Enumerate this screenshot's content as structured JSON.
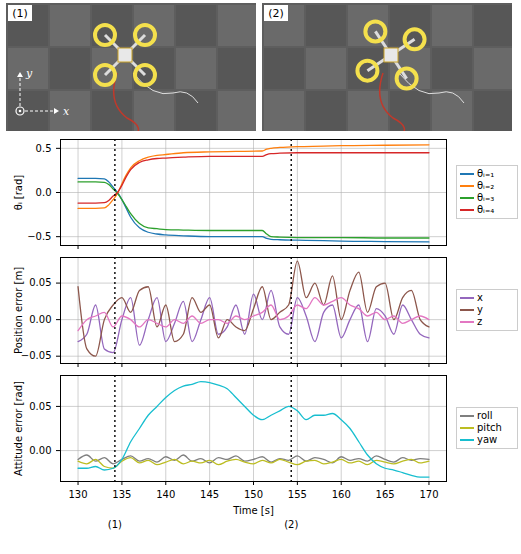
{
  "photos": [
    {
      "label": "(1)",
      "axes": [
        "x",
        "y"
      ]
    },
    {
      "label": "(2)"
    }
  ],
  "events": [
    {
      "x": 134.2,
      "label": "(1)"
    },
    {
      "x": 154.3,
      "label": "(2)"
    }
  ],
  "chart_data": [
    {
      "type": "line",
      "y_label": "θᵢ [rad]",
      "grid": true,
      "legend": "right",
      "tick_labels": "y",
      "xlim": [
        128,
        172
      ],
      "xticks": [
        130,
        135,
        140,
        145,
        150,
        155,
        160,
        165,
        170
      ],
      "ylim": [
        -0.6,
        0.6
      ],
      "yticks": [
        {
          "value": -0.5,
          "label": "−0.5"
        },
        {
          "value": 0,
          "label": "0.0"
        },
        {
          "value": 0.5,
          "label": "0.5"
        }
      ],
      "x": [
        130,
        131,
        132,
        133,
        133.5,
        134,
        134.5,
        135,
        135.5,
        136,
        137,
        138,
        139,
        140,
        142,
        145,
        148,
        151,
        151.5,
        152,
        153,
        155,
        158,
        160,
        165,
        170
      ],
      "series": [
        {
          "name": "θᵢ₌₁",
          "color": "#1f77b4",
          "values": [
            0.16,
            0.16,
            0.16,
            0.155,
            0.12,
            0.06,
            0.0,
            -0.08,
            -0.18,
            -0.28,
            -0.4,
            -0.45,
            -0.47,
            -0.48,
            -0.49,
            -0.5,
            -0.5,
            -0.5,
            -0.52,
            -0.53,
            -0.535,
            -0.54,
            -0.545,
            -0.55,
            -0.555,
            -0.56
          ]
        },
        {
          "name": "θᵢ₌₂",
          "color": "#ff7f0e",
          "values": [
            -0.18,
            -0.18,
            -0.18,
            -0.175,
            -0.14,
            -0.08,
            -0.01,
            0.1,
            0.2,
            0.28,
            0.36,
            0.4,
            0.42,
            0.43,
            0.45,
            0.46,
            0.465,
            0.47,
            0.49,
            0.5,
            0.51,
            0.52,
            0.525,
            0.53,
            0.535,
            0.54
          ]
        },
        {
          "name": "θᵢ₌₃",
          "color": "#2ca02c",
          "values": [
            0.12,
            0.12,
            0.12,
            0.115,
            0.09,
            0.04,
            -0.01,
            -0.08,
            -0.16,
            -0.24,
            -0.35,
            -0.4,
            -0.41,
            -0.42,
            -0.425,
            -0.43,
            -0.43,
            -0.43,
            -0.47,
            -0.5,
            -0.505,
            -0.51,
            -0.51,
            -0.51,
            -0.515,
            -0.515
          ]
        },
        {
          "name": "θᵢ₌₄",
          "color": "#d62728",
          "values": [
            -0.12,
            -0.12,
            -0.12,
            -0.115,
            -0.09,
            -0.04,
            0.0,
            0.08,
            0.18,
            0.26,
            0.34,
            0.37,
            0.385,
            0.39,
            0.4,
            0.41,
            0.41,
            0.41,
            0.43,
            0.44,
            0.445,
            0.45,
            0.45,
            0.45,
            0.45,
            0.45
          ]
        }
      ]
    },
    {
      "type": "line",
      "y_label": "Position error [m]",
      "grid": true,
      "legend": "right",
      "tick_labels": "y",
      "xlim": [
        128,
        172
      ],
      "xticks": [
        130,
        135,
        140,
        145,
        150,
        155,
        160,
        165,
        170
      ],
      "ylim": [
        -0.06,
        0.085
      ],
      "yticks": [
        {
          "value": -0.05,
          "label": "−0.05"
        },
        {
          "value": 0,
          "label": "0.00"
        },
        {
          "value": 0.05,
          "label": "0.05"
        }
      ],
      "x": [
        130,
        131,
        132,
        133,
        134,
        135,
        136,
        137,
        138,
        139,
        140,
        141,
        142,
        143,
        144,
        145,
        146,
        147,
        148,
        149,
        150,
        151,
        152,
        153,
        154,
        155,
        156,
        157,
        158,
        159,
        160,
        161,
        162,
        163,
        164,
        165,
        166,
        167,
        168,
        169,
        170
      ],
      "series": [
        {
          "name": "x",
          "color": "#9467bd",
          "values": [
            -0.03,
            -0.02,
            0.02,
            -0.04,
            -0.045,
            0.0,
            0.03,
            -0.035,
            0.0,
            0.03,
            -0.03,
            -0.005,
            0.025,
            -0.03,
            0.0,
            0.03,
            -0.02,
            -0.01,
            0.02,
            -0.02,
            0.035,
            0.0,
            0.04,
            -0.01,
            -0.02,
            0.03,
            0.005,
            -0.03,
            0.01,
            0.02,
            -0.025,
            0.0,
            0.02,
            -0.03,
            0.015,
            0.005,
            -0.02,
            0.02,
            0.0,
            -0.02,
            -0.025
          ]
        },
        {
          "name": "y",
          "color": "#8c564b",
          "values": [
            0.045,
            -0.04,
            -0.05,
            0.0,
            0.02,
            0.03,
            0.01,
            0.04,
            0.045,
            -0.01,
            0.02,
            -0.03,
            -0.02,
            0.03,
            0.01,
            0.02,
            -0.025,
            0.0,
            -0.01,
            -0.015,
            0.015,
            0.045,
            0.0,
            0.01,
            0.02,
            0.08,
            0.03,
            0.05,
            0.02,
            0.06,
            0.0,
            0.04,
            0.065,
            0.01,
            0.045,
            0.05,
            0.0,
            0.03,
            0.04,
            0.0,
            -0.01
          ]
        },
        {
          "name": "z",
          "color": "#e377c2",
          "values": [
            -0.015,
            0.0,
            0.005,
            0.01,
            -0.01,
            0.005,
            0.0,
            -0.01,
            0.0,
            -0.005,
            -0.01,
            0.0,
            -0.005,
            0.005,
            -0.005,
            0.0,
            0.0,
            -0.005,
            0.005,
            0.0,
            0.005,
            0.01,
            0.02,
            0.0,
            0.005,
            0.02,
            0.015,
            0.03,
            0.02,
            0.025,
            0.03,
            0.02,
            0.015,
            0.005,
            0.01,
            0.0,
            0.005,
            -0.005,
            0.0,
            0.005,
            0.0
          ]
        }
      ]
    },
    {
      "type": "line",
      "x_label": "Time [s]",
      "y_label": "Attitude error [rad]",
      "grid": true,
      "legend": "right",
      "xlim": [
        128,
        172
      ],
      "xticks": [
        130,
        135,
        140,
        145,
        150,
        155,
        160,
        165,
        170
      ],
      "ylim": [
        -0.035,
        0.085
      ],
      "yticks": [
        {
          "value": 0,
          "label": "0.00"
        },
        {
          "value": 0.05,
          "label": "0.05"
        }
      ],
      "x": [
        130,
        131,
        132,
        133,
        134,
        135,
        136,
        137,
        138,
        139,
        140,
        141,
        142,
        143,
        144,
        145,
        146,
        147,
        148,
        149,
        150,
        151,
        152,
        153,
        154,
        155,
        156,
        157,
        158,
        159,
        160,
        161,
        162,
        163,
        164,
        165,
        166,
        167,
        168,
        169,
        170
      ],
      "series": [
        {
          "name": "roll",
          "color": "#7f7f7f",
          "values": [
            -0.01,
            -0.005,
            -0.012,
            -0.008,
            -0.015,
            -0.01,
            -0.006,
            -0.012,
            -0.009,
            -0.013,
            -0.007,
            -0.011,
            -0.005,
            -0.012,
            -0.009,
            -0.014,
            -0.008,
            -0.01,
            -0.006,
            -0.012,
            -0.01,
            -0.007,
            -0.013,
            -0.009,
            -0.011,
            -0.006,
            -0.012,
            -0.008,
            -0.01,
            -0.014,
            -0.007,
            -0.011,
            -0.009,
            -0.012,
            -0.006,
            -0.01,
            -0.013,
            -0.008,
            -0.011,
            -0.009,
            -0.01
          ]
        },
        {
          "name": "pitch",
          "color": "#bcbd22",
          "values": [
            -0.012,
            -0.015,
            -0.01,
            -0.018,
            -0.02,
            -0.012,
            -0.008,
            -0.014,
            -0.011,
            -0.016,
            -0.013,
            -0.01,
            -0.015,
            -0.012,
            -0.014,
            -0.011,
            -0.016,
            -0.012,
            -0.01,
            -0.013,
            -0.015,
            -0.011,
            -0.014,
            -0.01,
            -0.013,
            -0.016,
            -0.012,
            -0.011,
            -0.015,
            -0.013,
            -0.01,
            -0.014,
            -0.012,
            -0.016,
            -0.011,
            -0.013,
            -0.015,
            -0.012,
            -0.01,
            -0.014,
            -0.012
          ]
        },
        {
          "name": "yaw",
          "color": "#17becf",
          "values": [
            -0.02,
            -0.02,
            -0.018,
            -0.022,
            -0.02,
            -0.01,
            0.01,
            0.025,
            0.04,
            0.05,
            0.06,
            0.068,
            0.073,
            0.075,
            0.078,
            0.077,
            0.074,
            0.07,
            0.06,
            0.05,
            0.04,
            0.035,
            0.04,
            0.045,
            0.05,
            0.045,
            0.035,
            0.04,
            0.04,
            0.042,
            0.035,
            0.025,
            0.01,
            -0.005,
            -0.015,
            -0.02,
            -0.022,
            -0.025,
            -0.028,
            -0.03,
            -0.03
          ]
        }
      ]
    }
  ]
}
